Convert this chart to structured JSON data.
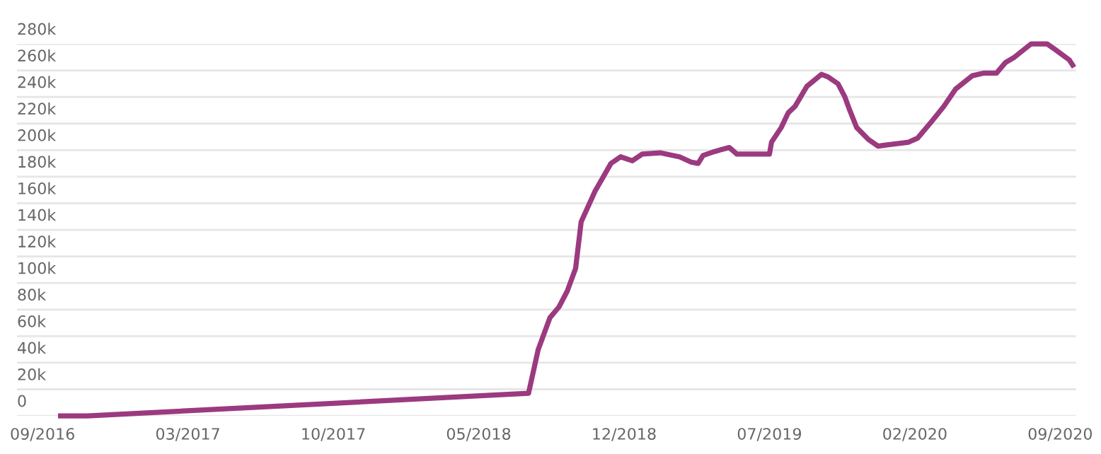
{
  "chart_data": {
    "type": "line",
    "x": [
      "2016-09-27",
      "2016-11-05",
      "2018-08-04",
      "2018-08-18",
      "2018-09-04",
      "2018-09-17",
      "2018-09-29",
      "2018-10-11",
      "2018-10-19",
      "2018-11-08",
      "2018-12-01",
      "2018-12-15",
      "2019-01-01",
      "2019-01-15",
      "2019-02-10",
      "2019-02-28",
      "2019-03-10",
      "2019-03-27",
      "2019-04-06",
      "2019-04-13",
      "2019-04-30",
      "2019-05-21",
      "2019-06-01",
      "2019-07-18",
      "2019-07-21",
      "2019-08-04",
      "2019-08-14",
      "2019-08-24",
      "2019-09-10",
      "2019-10-01",
      "2019-10-11",
      "2019-10-25",
      "2019-11-04",
      "2019-11-11",
      "2019-11-21",
      "2019-12-08",
      "2019-12-22",
      "2020-01-04",
      "2020-02-04",
      "2020-02-17",
      "2020-03-09",
      "2020-03-26",
      "2020-04-12",
      "2020-05-06",
      "2020-05-23",
      "2020-06-10",
      "2020-06-23",
      "2020-07-06",
      "2020-07-30",
      "2020-08-22",
      "2020-09-02",
      "2020-09-23",
      "2020-09-28"
    ],
    "series": [
      {
        "color": "#9b3a7f",
        "values": [
          0,
          0,
          17000,
          50000,
          74000,
          82000,
          94000,
          111000,
          146000,
          169000,
          190000,
          195000,
          192000,
          197000,
          198000,
          196000,
          195000,
          191000,
          190000,
          196000,
          199000,
          202000,
          197000,
          197000,
          206000,
          217000,
          228000,
          233000,
          248000,
          257000,
          255000,
          250000,
          240000,
          230000,
          217000,
          208000,
          203000,
          204000,
          206000,
          209000,
          222000,
          233000,
          246000,
          256000,
          258000,
          258000,
          266000,
          270000,
          280000,
          280000,
          276000,
          268000,
          264000
        ]
      }
    ],
    "xlim": [
      "2016-07-26",
      "2020-10-03"
    ],
    "xticks": [
      {
        "value": "2016-09-01",
        "label": "09/2016"
      },
      {
        "value": "2017-03-30",
        "label": "03/2017"
      },
      {
        "value": "2017-10-26",
        "label": "10/2017"
      },
      {
        "value": "2018-05-24",
        "label": "05/2018"
      },
      {
        "value": "2018-12-20",
        "label": "12/2018"
      },
      {
        "value": "2019-07-18",
        "label": "07/2019"
      },
      {
        "value": "2020-02-13",
        "label": "02/2020"
      },
      {
        "value": "2020-09-10",
        "label": "09/2020"
      }
    ],
    "ylim": [
      0,
      280000
    ],
    "yticks": [
      0,
      {
        "value": 20000,
        "label": "20k"
      },
      {
        "value": 40000,
        "label": "40k"
      },
      {
        "value": 60000,
        "label": "60k"
      },
      {
        "value": 80000,
        "label": "80k"
      },
      {
        "value": 100000,
        "label": "100k"
      },
      {
        "value": 120000,
        "label": "120k"
      },
      {
        "value": 140000,
        "label": "140k"
      },
      {
        "value": 160000,
        "label": "160k"
      },
      {
        "value": 180000,
        "label": "180k"
      },
      {
        "value": 200000,
        "label": "200k"
      },
      {
        "value": 220000,
        "label": "220k"
      },
      {
        "value": 240000,
        "label": "240k"
      },
      {
        "value": 260000,
        "label": "260k"
      },
      {
        "value": 280000,
        "label": "280k"
      }
    ],
    "grid": "y",
    "legend": false,
    "marker": "none",
    "line_style": "solid"
  }
}
